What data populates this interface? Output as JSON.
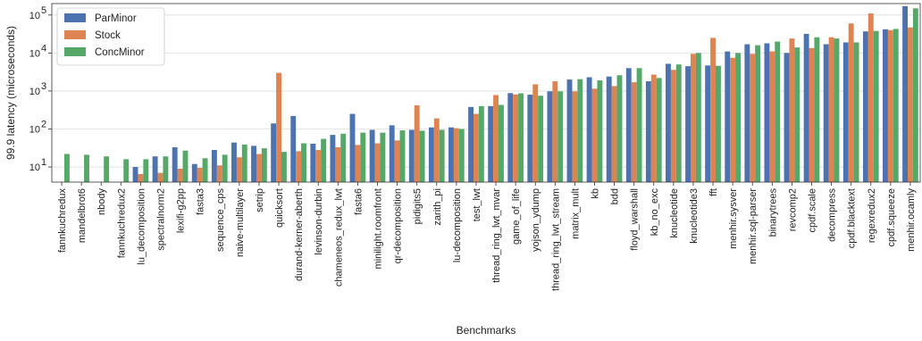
{
  "chart_data": {
    "type": "bar",
    "title": "",
    "xlabel": "Benchmarks",
    "ylabel": "99.9 latency (microseconds)",
    "yscale": "log",
    "ylim": [
      4,
      200000
    ],
    "yticks": [
      10,
      100,
      1000,
      10000,
      100000
    ],
    "ytick_labels": [
      "10",
      "10",
      "10",
      "10",
      "10"
    ],
    "ytick_exponents": [
      "1",
      "2",
      "3",
      "4",
      "5"
    ],
    "grid": true,
    "legend_position": "top-left",
    "categories": [
      "fannkuchredux",
      "mandelbrot6",
      "nbody",
      "fannkuchredux2",
      "lu_decomposition",
      "spectralnorm2",
      "lexifi-g2pp",
      "fasta3",
      "sequence_cps",
      "naive-multilayer",
      "setrip",
      "quicksort",
      "durand-kerner-aberth",
      "levinson-durbin",
      "chameneos_redux_lwt",
      "fasta6",
      "minilight.roomfront",
      "qr-decomposition",
      "pidigits5",
      "zarith_pi",
      "lu-decomposition",
      "test_lwt",
      "thread_ring_lwt_mvar",
      "game_of_life",
      "yojson_ydump",
      "thread_ring_lwt_stream",
      "matrix_mult",
      "kb",
      "bdd",
      "floyd_warshall",
      "kb_no_exc",
      "knucleotide",
      "knucleotide3",
      "fft",
      "menhir.sysver",
      "menhir.sql-parser",
      "binarytrees",
      "revcomp2",
      "cpdf.scale",
      "decompress",
      "cpdf.blacktext",
      "regexredux2",
      "cpdf.squeeze",
      "menhir.ocamly"
    ],
    "series": [
      {
        "name": "ParMinor",
        "color": "#4c72b0",
        "values": [
          null,
          null,
          null,
          null,
          10,
          19,
          33,
          12,
          28,
          44,
          36,
          140,
          220,
          41,
          70,
          250,
          95,
          125,
          95,
          110,
          110,
          380,
          400,
          880,
          800,
          980,
          2000,
          2300,
          2400,
          4000,
          1800,
          5200,
          4500,
          4700,
          11000,
          17000,
          18000,
          10000,
          32000,
          17000,
          19000,
          37000,
          42000,
          170000
        ]
      },
      {
        "name": "Stock",
        "color": "#dd8452",
        "values": [
          null,
          null,
          null,
          null,
          6.5,
          7,
          9,
          9.5,
          11,
          18,
          22,
          3000,
          26,
          28,
          33,
          38,
          42,
          50,
          420,
          190,
          105,
          250,
          780,
          810,
          1500,
          1800,
          980,
          1150,
          1350,
          1700,
          2700,
          3600,
          9500,
          25000,
          7500,
          9500,
          11000,
          24000,
          13500,
          26000,
          60000,
          110000,
          40000,
          47000
        ]
      },
      {
        "name": "ConcMinor",
        "color": "#55a868",
        "values": [
          22,
          21,
          19,
          16,
          16,
          19,
          27,
          17,
          21,
          39,
          31,
          25,
          42,
          55,
          75,
          80,
          80,
          92,
          90,
          95,
          100,
          400,
          430,
          870,
          750,
          980,
          2050,
          1900,
          2600,
          4000,
          2200,
          5000,
          10000,
          4600,
          10000,
          16000,
          20000,
          14000,
          26000,
          24000,
          19000,
          38000,
          43000,
          150000
        ]
      }
    ]
  }
}
